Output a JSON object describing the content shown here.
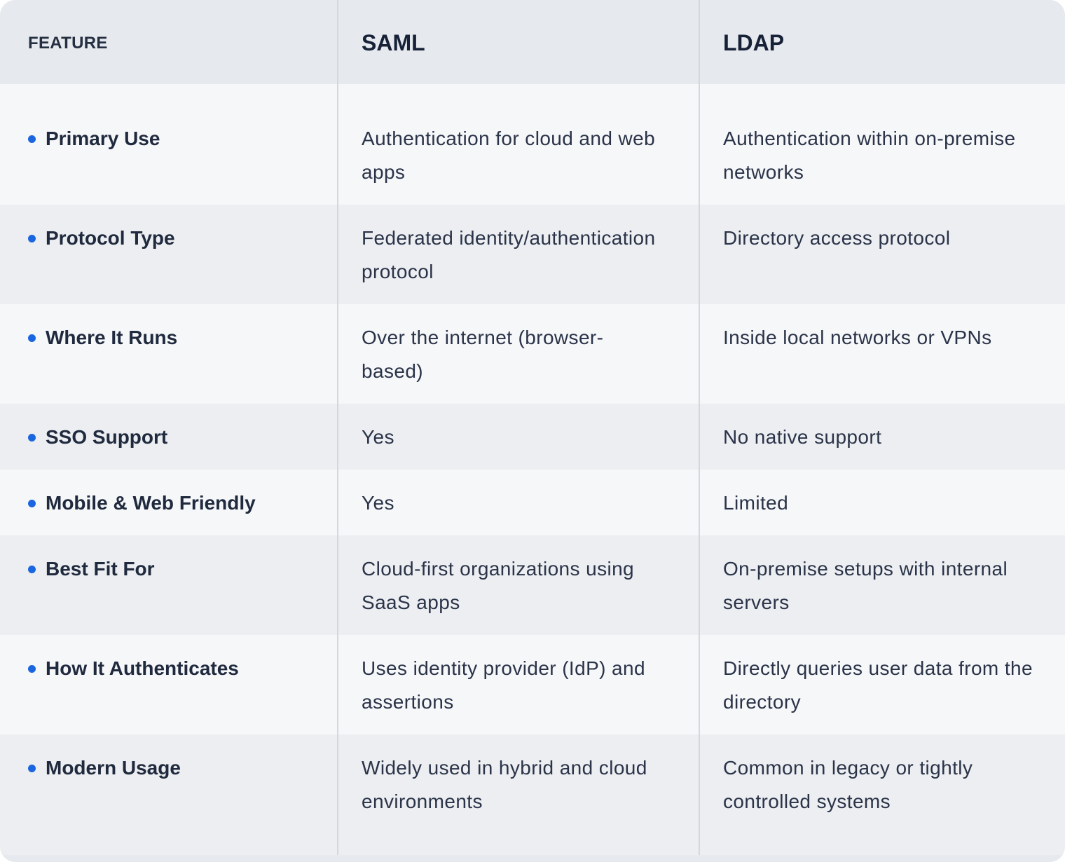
{
  "header": {
    "feature": "FEATURE",
    "col1": "SAML",
    "col2": "LDAP"
  },
  "rows": [
    {
      "feature": "Primary Use",
      "saml": "Authentication for cloud and web apps",
      "ldap": "Authentication within on-premise networks"
    },
    {
      "feature": "Protocol Type",
      "saml": "Federated identity/authentication protocol",
      "ldap": "Directory access protocol"
    },
    {
      "feature": "Where It Runs",
      "saml": "Over the internet (browser-based)",
      "ldap": "Inside local networks or VPNs"
    },
    {
      "feature": "SSO Support",
      "saml": "Yes",
      "ldap": "No native support"
    },
    {
      "feature": "Mobile & Web Friendly",
      "saml": "Yes",
      "ldap": "Limited"
    },
    {
      "feature": "Best Fit For",
      "saml": "Cloud-first organizations using SaaS apps",
      "ldap": "On-premise setups with internal servers"
    },
    {
      "feature": "How It Authenticates",
      "saml": "Uses identity provider (IdP) and assertions",
      "ldap": "Directly queries user data from the directory"
    },
    {
      "feature": "Modern Usage",
      "saml": "Widely used in hybrid and cloud environments",
      "ldap": "Common in legacy or tightly controlled systems"
    }
  ],
  "colors": {
    "accent_dot": "#1a66e0",
    "header_bg": "#e6e9ed",
    "row_light": "#f6f7f9",
    "row_dark": "#eceef1"
  }
}
